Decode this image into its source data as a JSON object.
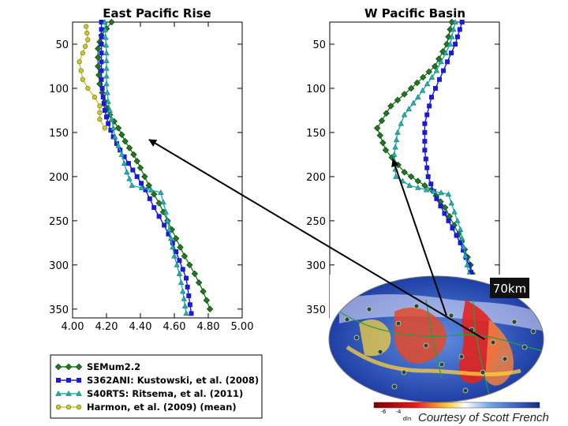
{
  "chart_data": [
    {
      "type": "line",
      "title": "East Pacific Rise",
      "xlabel": "",
      "ylabel": "",
      "xlim": [
        4.0,
        5.0
      ],
      "ylim": [
        25,
        360
      ],
      "y_inverted": true,
      "xticks": [
        "4.00",
        "4.20",
        "4.40",
        "4.60",
        "4.80",
        "5.00"
      ],
      "yticks": [
        "50",
        "100",
        "150",
        "200",
        "250",
        "300",
        "350"
      ],
      "series": [
        {
          "name": "SEMum2.2",
          "color": "#1e7a1e",
          "marker": "diamond",
          "x": [
            4.23,
            4.17,
            4.15,
            4.15,
            4.16,
            4.19,
            4.22,
            4.27,
            4.31,
            4.36,
            4.4,
            4.45,
            4.51,
            4.56,
            4.61,
            4.66,
            4.72,
            4.77,
            4.81
          ],
          "y": [
            25,
            40,
            55,
            75,
            95,
            115,
            130,
            145,
            160,
            175,
            190,
            210,
            230,
            250,
            270,
            290,
            310,
            330,
            350
          ]
        },
        {
          "name": "S362ANI: Kustowski, et al. (2008)",
          "color": "#1a1adb",
          "marker": "square",
          "x": [
            4.17,
            4.17,
            4.17,
            4.17,
            4.18,
            4.19,
            4.21,
            4.24,
            4.28,
            4.33,
            4.38,
            4.43,
            4.48,
            4.54,
            4.59,
            4.63,
            4.67,
            4.7
          ],
          "y": [
            25,
            50,
            70,
            90,
            110,
            125,
            140,
            155,
            170,
            185,
            200,
            215,
            235,
            255,
            275,
            295,
            315,
            355
          ]
        },
        {
          "name": "S40RTS: Ritsema, et al. (2011)",
          "color": "#20b0b0",
          "marker": "triangle",
          "x": [
            4.19,
            4.2,
            4.2,
            4.21,
            4.23,
            4.25,
            4.29,
            4.32,
            4.35,
            4.52,
            4.55,
            4.58,
            4.6,
            4.63,
            4.65,
            4.67
          ],
          "y": [
            25,
            60,
            95,
            115,
            135,
            155,
            175,
            195,
            210,
            218,
            240,
            270,
            290,
            310,
            330,
            355
          ]
        },
        {
          "name": "Harmon, et al. (2009) (mean)",
          "color": "#c8c832",
          "marker": "circle",
          "x": [
            4.08,
            4.09,
            4.06,
            4.04,
            4.05,
            4.06,
            4.09,
            4.13,
            4.16,
            4.16,
            4.19
          ],
          "y": [
            30,
            45,
            60,
            70,
            80,
            90,
            100,
            110,
            120,
            135,
            145
          ]
        }
      ]
    },
    {
      "type": "line",
      "title": "W Pacific Basin",
      "xlabel": "",
      "ylabel": "",
      "xlim": [
        4.0,
        5.0
      ],
      "ylim": [
        25,
        360
      ],
      "y_inverted": true,
      "yticks": [
        "50",
        "100",
        "150",
        "200",
        "250",
        "300",
        "350"
      ],
      "series": [
        {
          "name": "SEMum2.2",
          "color": "#1e7a1e",
          "marker": "diamond",
          "x": [
            4.72,
            4.69,
            4.62,
            4.48,
            4.36,
            4.28,
            4.33,
            4.44,
            4.6,
            4.68,
            4.76,
            4.83,
            4.86
          ],
          "y": [
            25,
            50,
            75,
            100,
            120,
            145,
            170,
            195,
            215,
            235,
            265,
            300,
            330
          ]
        },
        {
          "name": "S362ANI: Kustowski, et al. (2008)",
          "color": "#1a1adb",
          "marker": "square",
          "x": [
            4.78,
            4.74,
            4.67,
            4.6,
            4.56,
            4.56,
            4.58,
            4.63,
            4.7,
            4.77,
            4.82,
            4.86,
            4.88
          ],
          "y": [
            25,
            50,
            80,
            110,
            140,
            170,
            200,
            225,
            250,
            275,
            300,
            325,
            350
          ]
        },
        {
          "name": "S40RTS: Ritsema, et al. (2011)",
          "color": "#20b0b0",
          "marker": "triangle",
          "x": [
            4.74,
            4.71,
            4.63,
            4.52,
            4.44,
            4.4,
            4.38,
            4.39,
            4.47,
            4.57,
            4.7,
            4.77,
            4.81,
            4.84
          ],
          "y": [
            25,
            50,
            80,
            110,
            130,
            150,
            175,
            200,
            210,
            215,
            220,
            260,
            300,
            330
          ]
        }
      ]
    }
  ],
  "legend": [
    {
      "label": "SEMum2.2",
      "color": "#1e7a1e",
      "marker": "diamond"
    },
    {
      "label": "S362ANI: Kustowski, et al. (2008)",
      "color": "#1a1adb",
      "marker": "square"
    },
    {
      "label": "S40RTS: Ritsema, et al. (2011)",
      "color": "#20b0b0",
      "marker": "triangle"
    },
    {
      "label": "Harmon, et al. (2009) (mean)",
      "color": "#c8c832",
      "marker": "circle"
    }
  ],
  "inset": {
    "depth_label": "70km",
    "colorbar_ticks": [
      "-6",
      "-4"
    ],
    "colorbar_unit": "dln",
    "credit": "Courtesy of Scott French"
  }
}
